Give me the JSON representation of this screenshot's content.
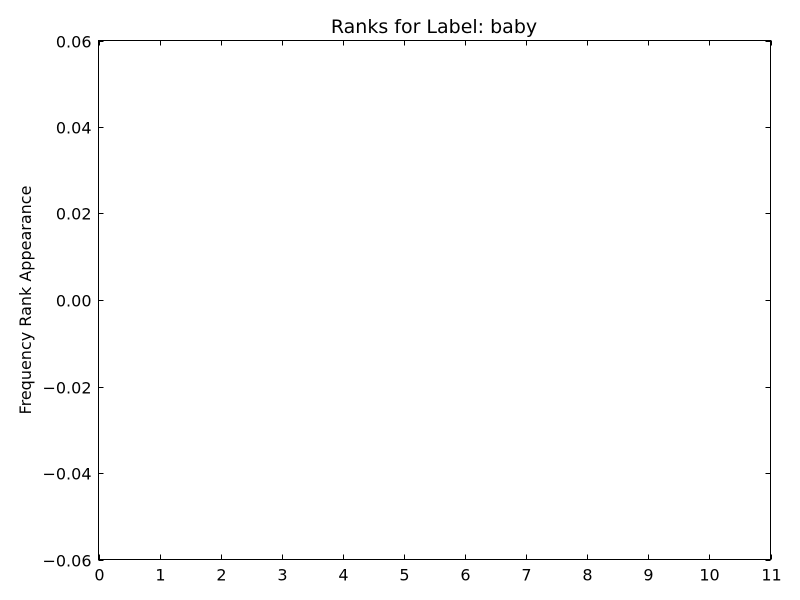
{
  "chart_data": {
    "type": "line",
    "title": "Ranks for Label: baby",
    "xlabel": "",
    "ylabel": "Frequency Rank Appearance",
    "xlim": [
      0,
      11
    ],
    "ylim": [
      -0.06,
      0.06
    ],
    "x_ticks": [
      0,
      1,
      2,
      3,
      4,
      5,
      6,
      7,
      8,
      9,
      10,
      11
    ],
    "x_tick_labels": [
      "0",
      "1",
      "2",
      "3",
      "4",
      "5",
      "6",
      "7",
      "8",
      "9",
      "10",
      "11"
    ],
    "y_ticks": [
      -0.06,
      -0.04,
      -0.02,
      0.0,
      0.02,
      0.04,
      0.06
    ],
    "y_tick_labels": [
      "−0.06",
      "−0.04",
      "−0.02",
      "0.00",
      "0.02",
      "0.04",
      "0.06"
    ],
    "series": [],
    "grid": false,
    "legend": "none"
  }
}
